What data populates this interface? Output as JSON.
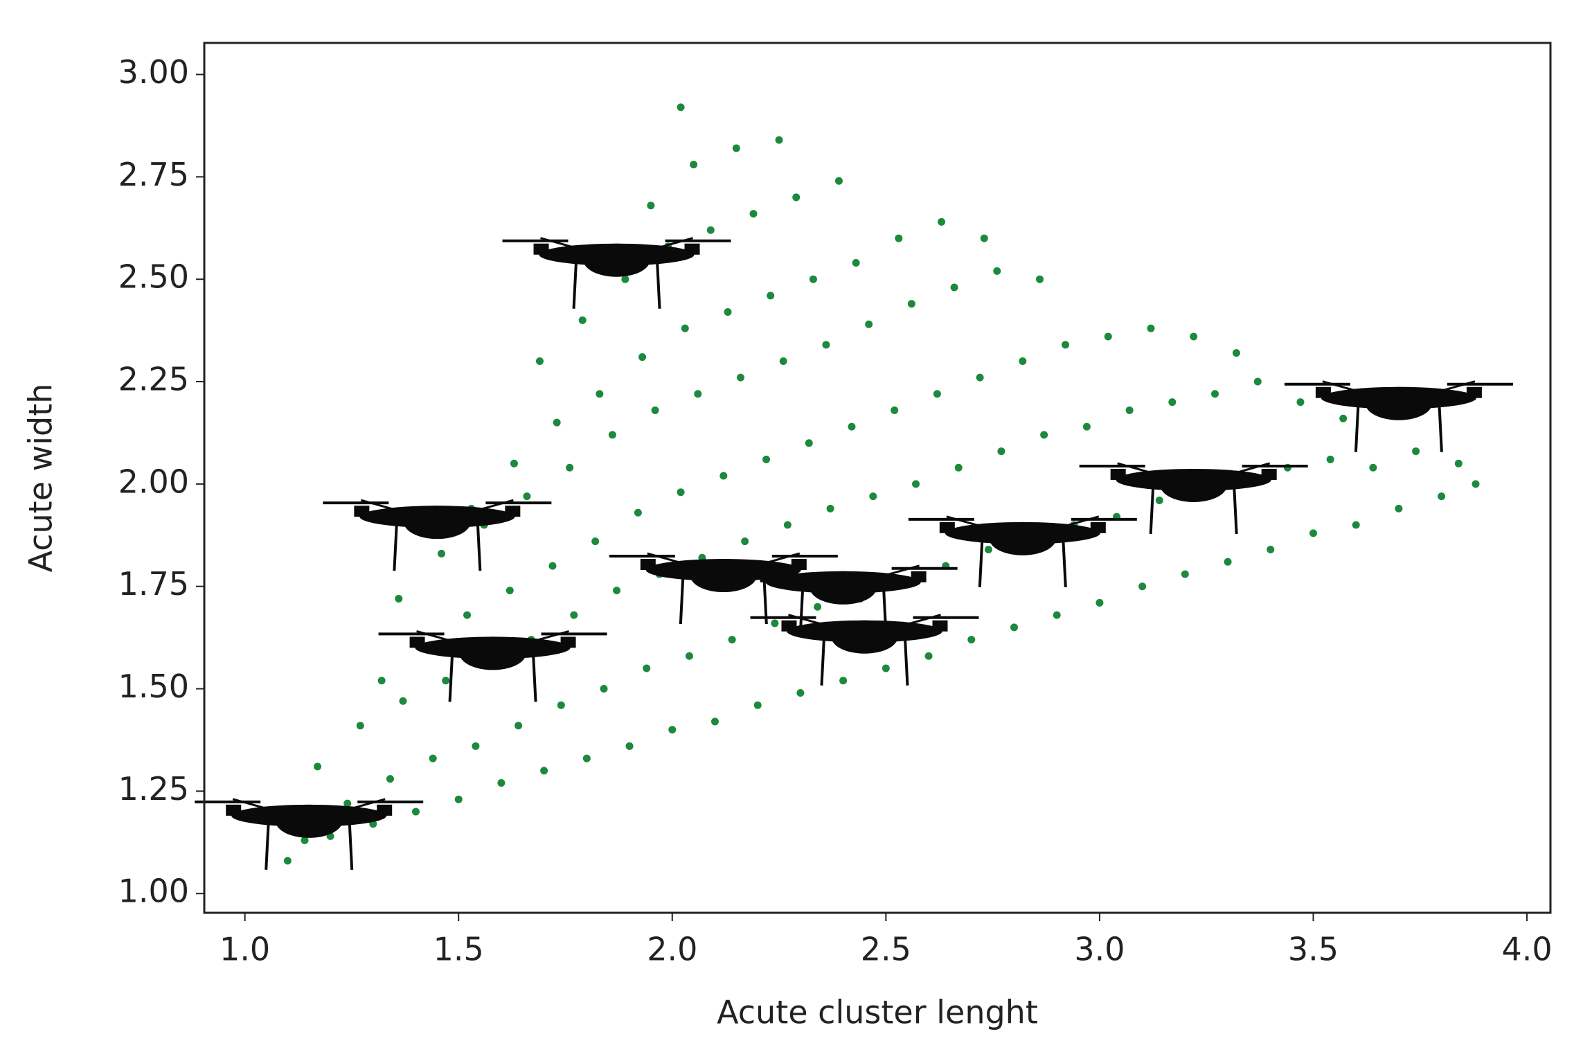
{
  "chart_data": {
    "type": "scatter",
    "xlabel": "Acute cluster lenght",
    "ylabel": "Acute width",
    "xlim": [
      0.905,
      4.055
    ],
    "ylim": [
      0.953,
      3.077
    ],
    "xticks": [
      {
        "value": 1,
        "label": "1.0"
      },
      {
        "value": 1.5,
        "label": "1.5"
      },
      {
        "value": 2,
        "label": "2.0"
      },
      {
        "value": 2.5,
        "label": "2.5"
      },
      {
        "value": 3,
        "label": "3.0"
      },
      {
        "value": 3.5,
        "label": "3.5"
      },
      {
        "value": 4,
        "label": "4.0"
      }
    ],
    "yticks": [
      {
        "value": 1,
        "label": "1.00"
      },
      {
        "value": 1.25,
        "label": "1.25"
      },
      {
        "value": 1.5,
        "label": "1.50"
      },
      {
        "value": 1.75,
        "label": "1.75"
      },
      {
        "value": 2,
        "label": "2.00"
      },
      {
        "value": 2.25,
        "label": "2.25"
      },
      {
        "value": 2.5,
        "label": "2.50"
      },
      {
        "value": 2.75,
        "label": "2.75"
      },
      {
        "value": 3,
        "label": "3.00"
      }
    ],
    "grid": false,
    "series": [
      {
        "color": "#1b8a3c",
        "marker": "dot",
        "x": [
          1.1,
          1.14,
          1.2,
          1.24,
          1.17,
          1.3,
          1.34,
          1.27,
          1.32,
          1.4,
          1.44,
          1.37,
          1.42,
          1.36,
          1.5,
          1.54,
          1.47,
          1.52,
          1.46,
          1.53,
          1.6,
          1.64,
          1.57,
          1.62,
          1.56,
          1.63,
          1.7,
          1.74,
          1.67,
          1.72,
          1.66,
          1.73,
          1.69,
          1.8,
          1.84,
          1.77,
          1.82,
          1.76,
          1.83,
          1.79,
          1.9,
          1.94,
          1.87,
          1.92,
          1.86,
          1.93,
          1.89,
          1.95,
          2.0,
          2.04,
          1.97,
          2.02,
          1.96,
          2.03,
          1.99,
          2.05,
          2.02,
          2.1,
          2.14,
          2.07,
          2.12,
          2.06,
          2.13,
          2.09,
          2.15,
          2.2,
          2.24,
          2.17,
          2.22,
          2.16,
          2.23,
          2.19,
          2.25,
          2.3,
          2.34,
          2.27,
          2.32,
          2.26,
          2.33,
          2.29,
          2.4,
          2.44,
          2.37,
          2.42,
          2.36,
          2.43,
          2.39,
          2.5,
          2.54,
          2.47,
          2.52,
          2.46,
          2.53,
          2.6,
          2.64,
          2.57,
          2.62,
          2.56,
          2.63,
          2.7,
          2.74,
          2.67,
          2.72,
          2.66,
          2.73,
          2.8,
          2.84,
          2.77,
          2.82,
          2.76,
          2.9,
          2.94,
          2.87,
          2.92,
          2.86,
          3.0,
          3.04,
          2.97,
          3.02,
          3.1,
          3.14,
          3.07,
          3.12,
          3.2,
          3.24,
          3.17,
          3.22,
          3.3,
          3.34,
          3.27,
          3.32,
          3.4,
          3.44,
          3.37,
          3.5,
          3.54,
          3.47,
          3.6,
          3.64,
          3.57,
          3.7,
          3.74,
          3.8,
          3.84,
          3.88
        ],
        "y": [
          1.08,
          1.13,
          1.14,
          1.22,
          1.31,
          1.17,
          1.28,
          1.41,
          1.52,
          1.2,
          1.33,
          1.47,
          1.6,
          1.72,
          1.23,
          1.36,
          1.52,
          1.68,
          1.83,
          1.94,
          1.27,
          1.41,
          1.58,
          1.74,
          1.9,
          2.05,
          1.3,
          1.46,
          1.62,
          1.8,
          1.97,
          2.15,
          2.3,
          1.33,
          1.5,
          1.68,
          1.86,
          2.04,
          2.22,
          2.4,
          1.36,
          1.55,
          1.74,
          1.93,
          2.12,
          2.31,
          2.5,
          2.68,
          1.4,
          1.58,
          1.78,
          1.98,
          2.18,
          2.38,
          2.58,
          2.78,
          2.92,
          1.42,
          1.62,
          1.82,
          2.02,
          2.22,
          2.42,
          2.62,
          2.82,
          1.46,
          1.66,
          1.86,
          2.06,
          2.26,
          2.46,
          2.66,
          2.84,
          1.49,
          1.7,
          1.9,
          2.1,
          2.3,
          2.5,
          2.7,
          1.52,
          1.72,
          1.94,
          2.14,
          2.34,
          2.54,
          2.74,
          1.55,
          1.76,
          1.97,
          2.18,
          2.39,
          2.6,
          1.58,
          1.8,
          2.0,
          2.22,
          2.44,
          2.64,
          1.62,
          1.84,
          2.04,
          2.26,
          2.48,
          2.6,
          1.65,
          1.86,
          2.08,
          2.3,
          2.52,
          1.68,
          1.9,
          2.12,
          2.34,
          2.5,
          1.71,
          1.92,
          2.14,
          2.36,
          1.75,
          1.96,
          2.18,
          2.38,
          1.78,
          1.98,
          2.2,
          2.36,
          1.81,
          2.02,
          2.22,
          2.32,
          1.84,
          2.04,
          2.25,
          1.88,
          2.06,
          2.2,
          1.9,
          2.04,
          2.16,
          1.94,
          2.08,
          1.97,
          2.05,
          2.0
        ]
      },
      {
        "color": "#0a0a0a",
        "marker": "drone",
        "x": [
          1.15,
          1.45,
          1.58,
          1.87,
          2.12,
          2.4,
          2.45,
          2.82,
          3.22,
          3.7
        ],
        "y": [
          1.19,
          1.92,
          1.6,
          2.56,
          1.79,
          1.76,
          1.64,
          1.88,
          2.01,
          2.21
        ]
      }
    ]
  }
}
